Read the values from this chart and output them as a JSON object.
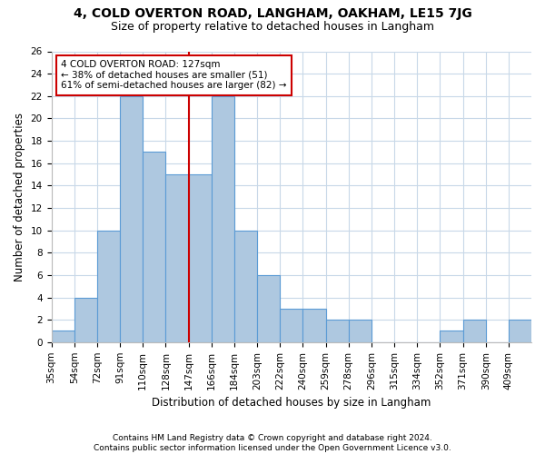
{
  "title": "4, COLD OVERTON ROAD, LANGHAM, OAKHAM, LE15 7JG",
  "subtitle": "Size of property relative to detached houses in Langham",
  "xlabel": "Distribution of detached houses by size in Langham",
  "ylabel": "Number of detached properties",
  "categories": [
    "35sqm",
    "54sqm",
    "72sqm",
    "91sqm",
    "110sqm",
    "128sqm",
    "147sqm",
    "166sqm",
    "184sqm",
    "203sqm",
    "222sqm",
    "240sqm",
    "259sqm",
    "278sqm",
    "296sqm",
    "315sqm",
    "334sqm",
    "352sqm",
    "371sqm",
    "390sqm",
    "409sqm"
  ],
  "values": [
    1,
    4,
    10,
    22,
    17,
    15,
    15,
    22,
    10,
    6,
    3,
    3,
    2,
    2,
    0,
    0,
    0,
    1,
    2,
    0,
    2
  ],
  "bar_color": "#aec8e0",
  "bar_edge_color": "#5b9bd5",
  "property_index": 5,
  "property_label": "4 COLD OVERTON ROAD: 127sqm",
  "annotation_line1": "← 38% of detached houses are smaller (51)",
  "annotation_line2": "61% of semi-detached houses are larger (82) →",
  "vline_color": "#cc0000",
  "annotation_box_edge": "#cc0000",
  "ylim": [
    0,
    26
  ],
  "yticks": [
    0,
    2,
    4,
    6,
    8,
    10,
    12,
    14,
    16,
    18,
    20,
    22,
    24,
    26
  ],
  "footnote1": "Contains HM Land Registry data © Crown copyright and database right 2024.",
  "footnote2": "Contains public sector information licensed under the Open Government Licence v3.0.",
  "title_fontsize": 10,
  "subtitle_fontsize": 9,
  "axis_label_fontsize": 8.5,
  "tick_fontsize": 7.5,
  "annotation_fontsize": 7.5,
  "footnote_fontsize": 6.5,
  "grid_color": "#c8d8e8",
  "background_color": "#ffffff"
}
